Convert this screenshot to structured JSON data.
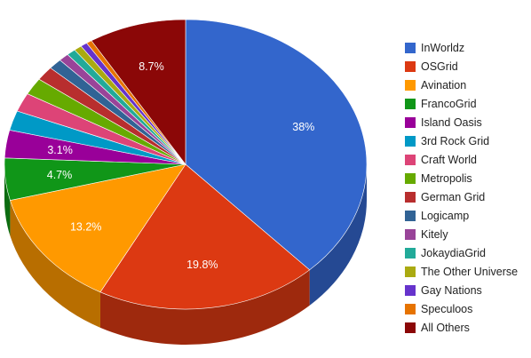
{
  "chart_data": {
    "type": "pie",
    "style": "3d",
    "legend_position": "right",
    "categories": [
      "InWorldz",
      "OSGrid",
      "Avination",
      "FrancoGrid",
      "Island Oasis",
      "3rd Rock Grid",
      "Craft World",
      "Metropolis",
      "German Grid",
      "Logicamp",
      "Kitely",
      "JokaydiaGrid",
      "The Other Universe",
      "Gay Nations",
      "Speculoos",
      "All Others"
    ],
    "values": [
      38.0,
      19.8,
      13.2,
      4.7,
      3.1,
      2.2,
      2.1,
      1.9,
      1.6,
      1.2,
      0.9,
      0.8,
      0.7,
      0.6,
      0.5,
      8.7
    ],
    "colors": [
      "#3366cc",
      "#dc3912",
      "#ff9900",
      "#109618",
      "#990099",
      "#0099c6",
      "#dd4477",
      "#66aa00",
      "#b82e2e",
      "#316395",
      "#994499",
      "#22aa99",
      "#aaaa11",
      "#6633cc",
      "#e67300",
      "#8b0707"
    ],
    "data_labels": [
      "38%",
      "19.8%",
      "13.2%",
      "4.7%",
      "3.1%",
      "",
      "",
      "",
      "",
      "",
      "",
      "",
      "",
      "",
      "",
      "8.7%"
    ]
  }
}
